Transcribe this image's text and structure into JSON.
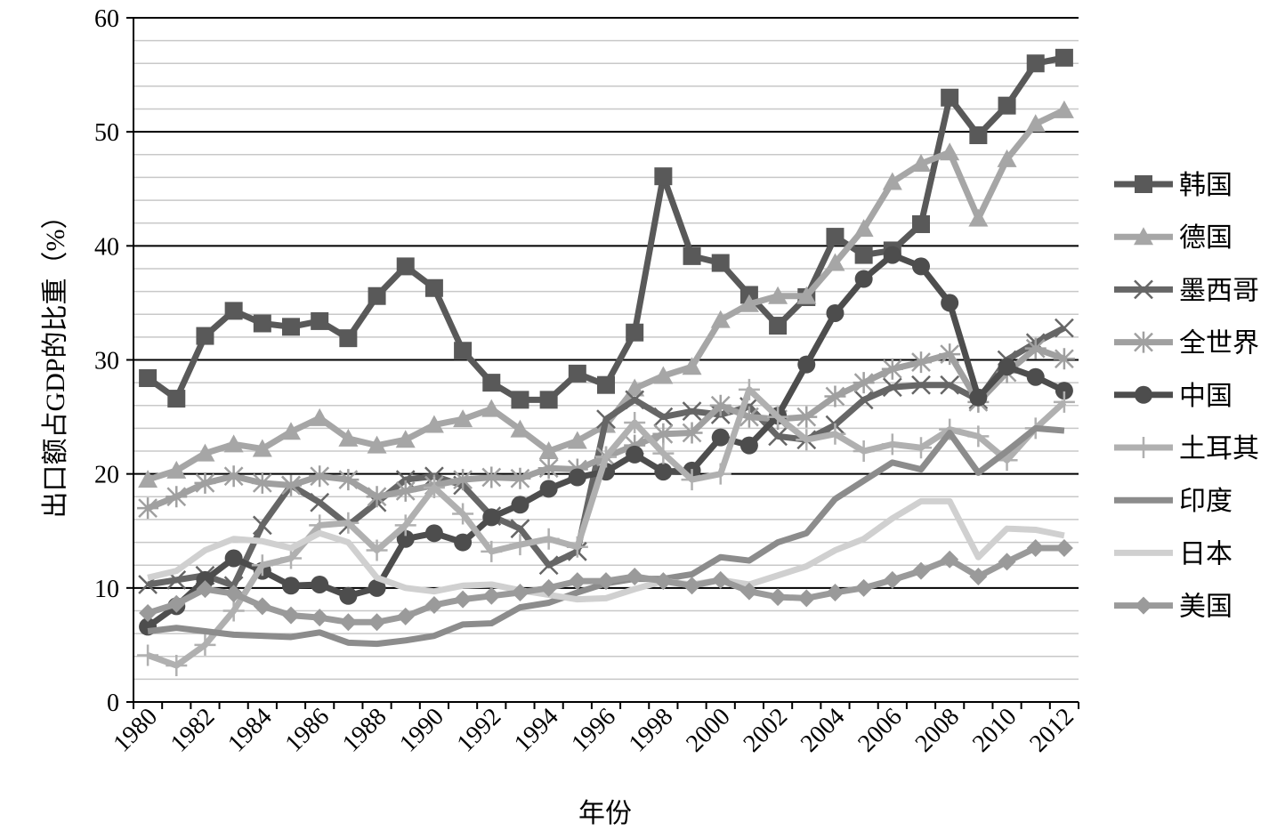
{
  "chart_data": {
    "type": "line",
    "ylabel": "出口额占GDP的比重（%）",
    "xlabel": "年份",
    "categories": [
      "1980",
      null,
      "1982",
      null,
      "1984",
      null,
      "1986",
      null,
      "1988",
      null,
      "1990",
      null,
      "1992",
      null,
      "1994",
      null,
      "1996",
      null,
      "1998",
      null,
      "2000",
      null,
      "2002",
      null,
      "2004",
      null,
      "2006",
      null,
      "2008",
      null,
      "2010",
      null,
      "2012"
    ],
    "ylim": [
      0,
      60
    ],
    "yticks": [
      0,
      10,
      20,
      30,
      40,
      50,
      60
    ],
    "minor_yticks": [
      2,
      4,
      6,
      8,
      12,
      14,
      16,
      18,
      22,
      24,
      26,
      28,
      32,
      34,
      36,
      38,
      42,
      44,
      46,
      48,
      52,
      54,
      56,
      58
    ],
    "grid": true,
    "legend": "right",
    "series": [
      {
        "name": "韩国",
        "color": "#595959",
        "marker": "square",
        "values": [
          28.4,
          26.6,
          32.1,
          34.3,
          33.2,
          32.9,
          33.4,
          31.9,
          35.6,
          38.2,
          36.3,
          30.8,
          28.0,
          26.5,
          26.5,
          28.8,
          27.8,
          32.4,
          46.1,
          39.1,
          38.5,
          35.7,
          33.0,
          35.5,
          40.8,
          39.2,
          39.6,
          41.9,
          53.0,
          49.7,
          52.3,
          56.0,
          56.5
        ]
      },
      {
        "name": "德国",
        "color": "#a6a6a6",
        "marker": "triangle",
        "values": [
          19.5,
          20.3,
          21.8,
          22.6,
          22.2,
          23.7,
          24.9,
          23.1,
          22.5,
          23.0,
          24.3,
          24.8,
          25.7,
          23.9,
          22.0,
          22.9,
          24.3,
          27.5,
          28.6,
          29.4,
          33.5,
          34.9,
          35.6,
          35.6,
          38.5,
          41.5,
          45.6,
          47.2,
          48.2,
          42.4,
          47.6,
          50.7,
          51.9
        ]
      },
      {
        "name": "墨西哥",
        "color": "#666666",
        "marker": "x",
        "values": [
          10.3,
          10.7,
          11.1,
          10.2,
          15.5,
          19.0,
          17.5,
          15.5,
          17.5,
          19.5,
          19.8,
          19.0,
          16.3,
          15.2,
          12.0,
          13.2,
          24.8,
          26.5,
          25.0,
          25.5,
          25.2,
          25.9,
          23.3,
          23.0,
          24.3,
          26.5,
          27.6,
          27.8,
          27.8,
          26.5,
          30.0,
          31.5,
          32.8
        ]
      },
      {
        "name": "全世界",
        "color": "#a0a0a0",
        "marker": "asterisk",
        "values": [
          17.0,
          18.0,
          19.2,
          19.8,
          19.2,
          19.0,
          19.8,
          19.5,
          18.0,
          18.5,
          19.0,
          19.5,
          19.7,
          19.6,
          20.5,
          20.4,
          21.5,
          22.5,
          23.5,
          23.6,
          26.0,
          25.0,
          24.8,
          25.0,
          26.8,
          28.0,
          29.2,
          29.8,
          30.5,
          26.3,
          28.9,
          31.0,
          30.1
        ]
      },
      {
        "name": "中国",
        "color": "#4d4d4d",
        "marker": "circle",
        "values": [
          6.6,
          8.4,
          10.7,
          12.6,
          11.5,
          10.2,
          10.3,
          9.3,
          10.0,
          14.3,
          14.8,
          14.0,
          16.2,
          17.3,
          18.7,
          19.7,
          20.2,
          21.7,
          20.2,
          20.3,
          23.2,
          22.5,
          25.1,
          29.6,
          34.1,
          37.1,
          39.2,
          38.2,
          35.0,
          26.7,
          29.4,
          28.5,
          27.3
        ]
      },
      {
        "name": "土耳其",
        "color": "#b0b0b0",
        "marker": "plus",
        "values": [
          4.1,
          3.2,
          5.0,
          8.0,
          12.0,
          12.6,
          15.5,
          15.7,
          13.3,
          15.5,
          18.8,
          16.5,
          13.2,
          13.8,
          14.3,
          13.6,
          21.5,
          24.5,
          21.8,
          19.5,
          20.0,
          27.4,
          25.0,
          23.0,
          23.5,
          22.0,
          22.6,
          22.3,
          23.9,
          23.3,
          21.2,
          24.0,
          26.3
        ]
      },
      {
        "name": "印度",
        "color": "#8c8c8c",
        "marker": "none",
        "values": [
          6.2,
          6.5,
          6.2,
          5.9,
          5.8,
          5.7,
          6.1,
          5.2,
          5.1,
          5.4,
          5.8,
          6.8,
          6.9,
          8.3,
          8.7,
          9.6,
          10.4,
          10.8,
          10.8,
          11.2,
          12.7,
          12.4,
          14.0,
          14.8,
          17.8,
          19.4,
          21.0,
          20.4,
          23.6,
          20.1,
          22.0,
          24.0,
          23.8
        ]
      },
      {
        "name": "日本",
        "color": "#d0d0d0",
        "marker": "none",
        "values": [
          10.9,
          11.5,
          13.3,
          14.3,
          14.1,
          13.5,
          14.8,
          14.0,
          10.9,
          10.0,
          9.7,
          10.2,
          10.3,
          9.8,
          9.4,
          9.0,
          9.1,
          9.9,
          10.6,
          10.3,
          10.7,
          10.3,
          11.1,
          11.9,
          13.3,
          14.3,
          16.1,
          17.6,
          17.6,
          12.7,
          15.2,
          15.1,
          14.6
        ]
      },
      {
        "name": "美国",
        "color": "#9a9a9a",
        "marker": "diamond",
        "values": [
          7.8,
          8.6,
          9.9,
          9.5,
          8.4,
          7.6,
          7.4,
          7.0,
          7.0,
          7.5,
          8.5,
          9.0,
          9.3,
          9.6,
          10.0,
          10.6,
          10.6,
          11.0,
          10.6,
          10.2,
          10.7,
          9.7,
          9.2,
          9.1,
          9.6,
          10.0,
          10.7,
          11.5,
          12.5,
          11.0,
          12.3,
          13.5,
          13.5
        ]
      }
    ]
  }
}
